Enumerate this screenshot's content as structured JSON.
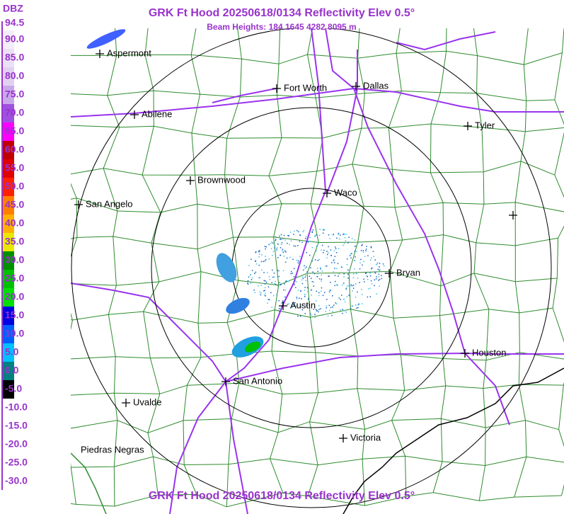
{
  "header": {
    "title": "GRK Ft Hood 20250618/0134 Reflectivity Elev 0.5°",
    "subtitle": "Beam Heights: 184 1645 4282 8095 m"
  },
  "legend": {
    "unit": "DBZ",
    "entries": [
      {
        "label": "94.5",
        "color": "#ffffff"
      },
      {
        "label": "90.0",
        "color": "#f4eefa"
      },
      {
        "label": "85.0",
        "color": "#ece0f6"
      },
      {
        "label": "80.0",
        "color": "#e2d0f2"
      },
      {
        "label": "75.0",
        "color": "#c9a8ea"
      },
      {
        "label": "70.0",
        "color": "#a050e0"
      },
      {
        "label": "65.0",
        "color": "#ff00ff"
      },
      {
        "label": "60.0",
        "color": "#c00000"
      },
      {
        "label": "55.0",
        "color": "#e00000"
      },
      {
        "label": "50.0",
        "color": "#ff2000"
      },
      {
        "label": "45.0",
        "color": "#ff8000"
      },
      {
        "label": "40.0",
        "color": "#ffb000"
      },
      {
        "label": "35.0",
        "color": "#e8e800"
      },
      {
        "label": "30.0",
        "color": "#009000"
      },
      {
        "label": "25.0",
        "color": "#00c000"
      },
      {
        "label": "20.0",
        "color": "#00e000"
      },
      {
        "label": "15.0",
        "color": "#0000e0"
      },
      {
        "label": "10.0",
        "color": "#0060ff"
      },
      {
        "label": "5.0",
        "color": "#00c0ff"
      },
      {
        "label": "0.0",
        "color": "#008080"
      },
      {
        "label": "-5.0",
        "color": "#000000"
      },
      {
        "label": "-10.0",
        "color": "#ffffff"
      },
      {
        "label": "-15.0",
        "color": "#ffffff"
      },
      {
        "label": "-20.0",
        "color": "#ffffff"
      },
      {
        "label": "-25.0",
        "color": "#ffffff"
      },
      {
        "label": "-30.0",
        "color": "#ffffff"
      }
    ]
  },
  "cities": [
    {
      "label": "Aspermont"
    },
    {
      "label": "Fort Worth"
    },
    {
      "label": "Dallas"
    },
    {
      "label": "Abilene"
    },
    {
      "label": "Tyler"
    },
    {
      "label": "Brownwood"
    },
    {
      "label": "Waco"
    },
    {
      "label": "San Angelo"
    },
    {
      "label": "Bryan"
    },
    {
      "label": "Austin"
    },
    {
      "label": "Houston"
    },
    {
      "label": "San Antonio"
    },
    {
      "label": "Uvalde"
    },
    {
      "label": "Victoria"
    },
    {
      "label": "Piedras Negras"
    }
  ],
  "footer": {
    "title": "GRK Ft Hood 20250618/0134 Reflectivity Elev 0.5°"
  }
}
